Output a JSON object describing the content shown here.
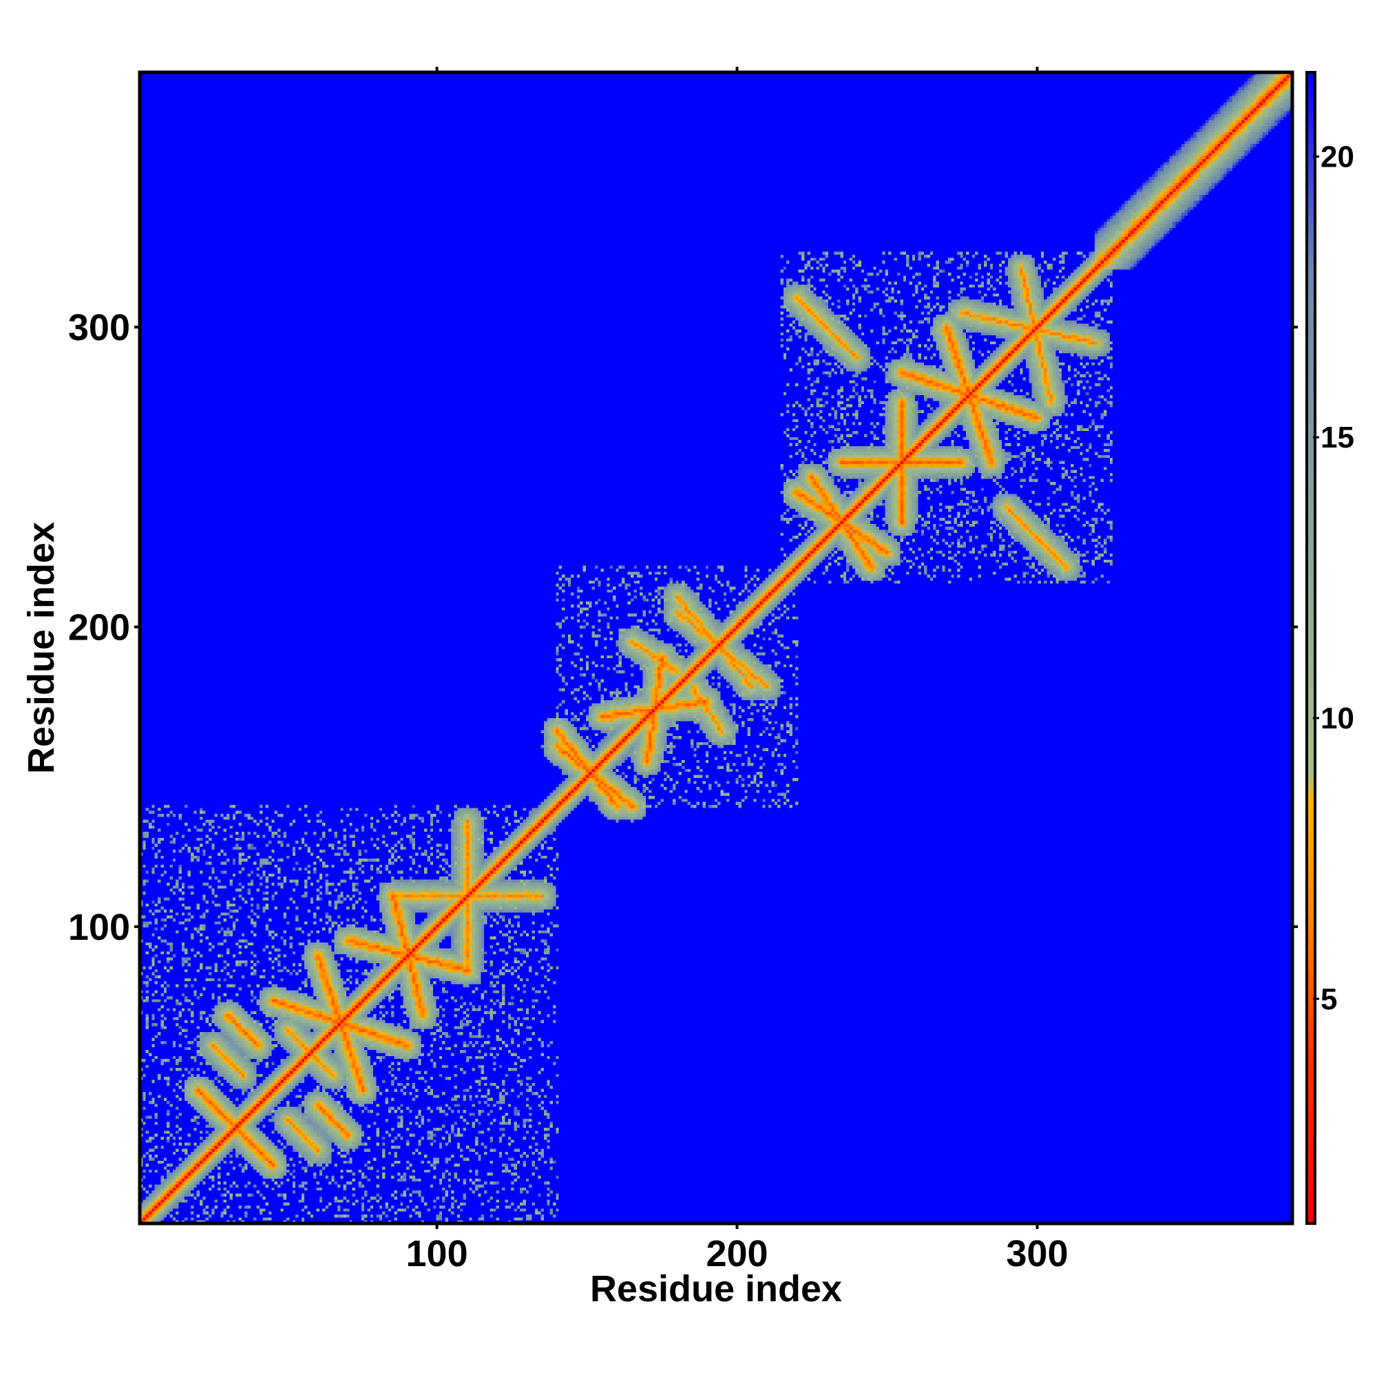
{
  "chart_data": {
    "type": "heatmap",
    "title": "",
    "xlabel": "Residue index",
    "ylabel": "Residue index",
    "xlim": [
      1,
      385
    ],
    "ylim": [
      1,
      385
    ],
    "x_ticks": [
      "100",
      "200",
      "300"
    ],
    "y_ticks": [
      "100",
      "200",
      "300"
    ],
    "colorbar": {
      "range": [
        1,
        21.5
      ],
      "ticks": [
        "5",
        "10",
        "15",
        "20"
      ],
      "color_stops": [
        {
          "value": 1,
          "color": "#ff0000"
        },
        {
          "value": 4,
          "color": "#ff3300"
        },
        {
          "value": 6.5,
          "color": "#ff8800"
        },
        {
          "value": 8.5,
          "color": "#ffb300"
        },
        {
          "value": 9,
          "color": "#a8c080"
        },
        {
          "value": 13,
          "color": "#8aa89a"
        },
        {
          "value": 18,
          "color": "#6a88b0"
        },
        {
          "value": 21.5,
          "color": "#0000ff"
        }
      ]
    },
    "background_color": "#0000ff",
    "description_of_values": "symmetric matrix; values are distances; cells beyond cutoff shown as 21+",
    "diagonal_value": 3.8,
    "domains": [
      {
        "residue_start": 1,
        "residue_end": 140,
        "kind": "beta-rich"
      },
      {
        "residue_start": 140,
        "residue_end": 220,
        "kind": "beta-rich"
      },
      {
        "residue_start": 215,
        "residue_end": 325,
        "kind": "beta-rich"
      },
      {
        "residue_start": 320,
        "residue_end": 385,
        "kind": "helical"
      }
    ],
    "contact_segments": [
      {
        "a": [
          30,
          70
        ],
        "b": [
          40,
          60
        ],
        "min_distance": 5
      },
      {
        "a": [
          20,
          45
        ],
        "b": [
          45,
          20
        ],
        "min_distance": 5
      },
      {
        "a": [
          45,
          75
        ],
        "b": [
          90,
          60
        ],
        "min_distance": 5
      },
      {
        "a": [
          70,
          95
        ],
        "b": [
          110,
          85
        ],
        "min_distance": 5
      },
      {
        "a": [
          85,
          110
        ],
        "b": [
          135,
          110
        ],
        "min_distance": 6
      },
      {
        "a": [
          25,
          60
        ],
        "b": [
          35,
          50
        ],
        "min_distance": 6
      },
      {
        "a": [
          50,
          65
        ],
        "b": [
          60,
          55
        ],
        "min_distance": 6
      },
      {
        "a": [
          155,
          170
        ],
        "b": [
          190,
          175
        ],
        "min_distance": 5
      },
      {
        "a": [
          140,
          160
        ],
        "b": [
          165,
          140
        ],
        "min_distance": 5
      },
      {
        "a": [
          165,
          195
        ],
        "b": [
          180,
          185
        ],
        "min_distance": 6
      },
      {
        "a": [
          180,
          210
        ],
        "b": [
          205,
          180
        ],
        "min_distance": 6
      },
      {
        "a": [
          235,
          255
        ],
        "b": [
          275,
          255
        ],
        "min_distance": 5
      },
      {
        "a": [
          220,
          245
        ],
        "b": [
          250,
          225
        ],
        "min_distance": 5
      },
      {
        "a": [
          255,
          285
        ],
        "b": [
          300,
          270
        ],
        "min_distance": 5
      },
      {
        "a": [
          275,
          305
        ],
        "b": [
          320,
          295
        ],
        "min_distance": 6
      },
      {
        "a": [
          220,
          310
        ],
        "b": [
          240,
          290
        ],
        "min_distance": 6
      }
    ]
  }
}
